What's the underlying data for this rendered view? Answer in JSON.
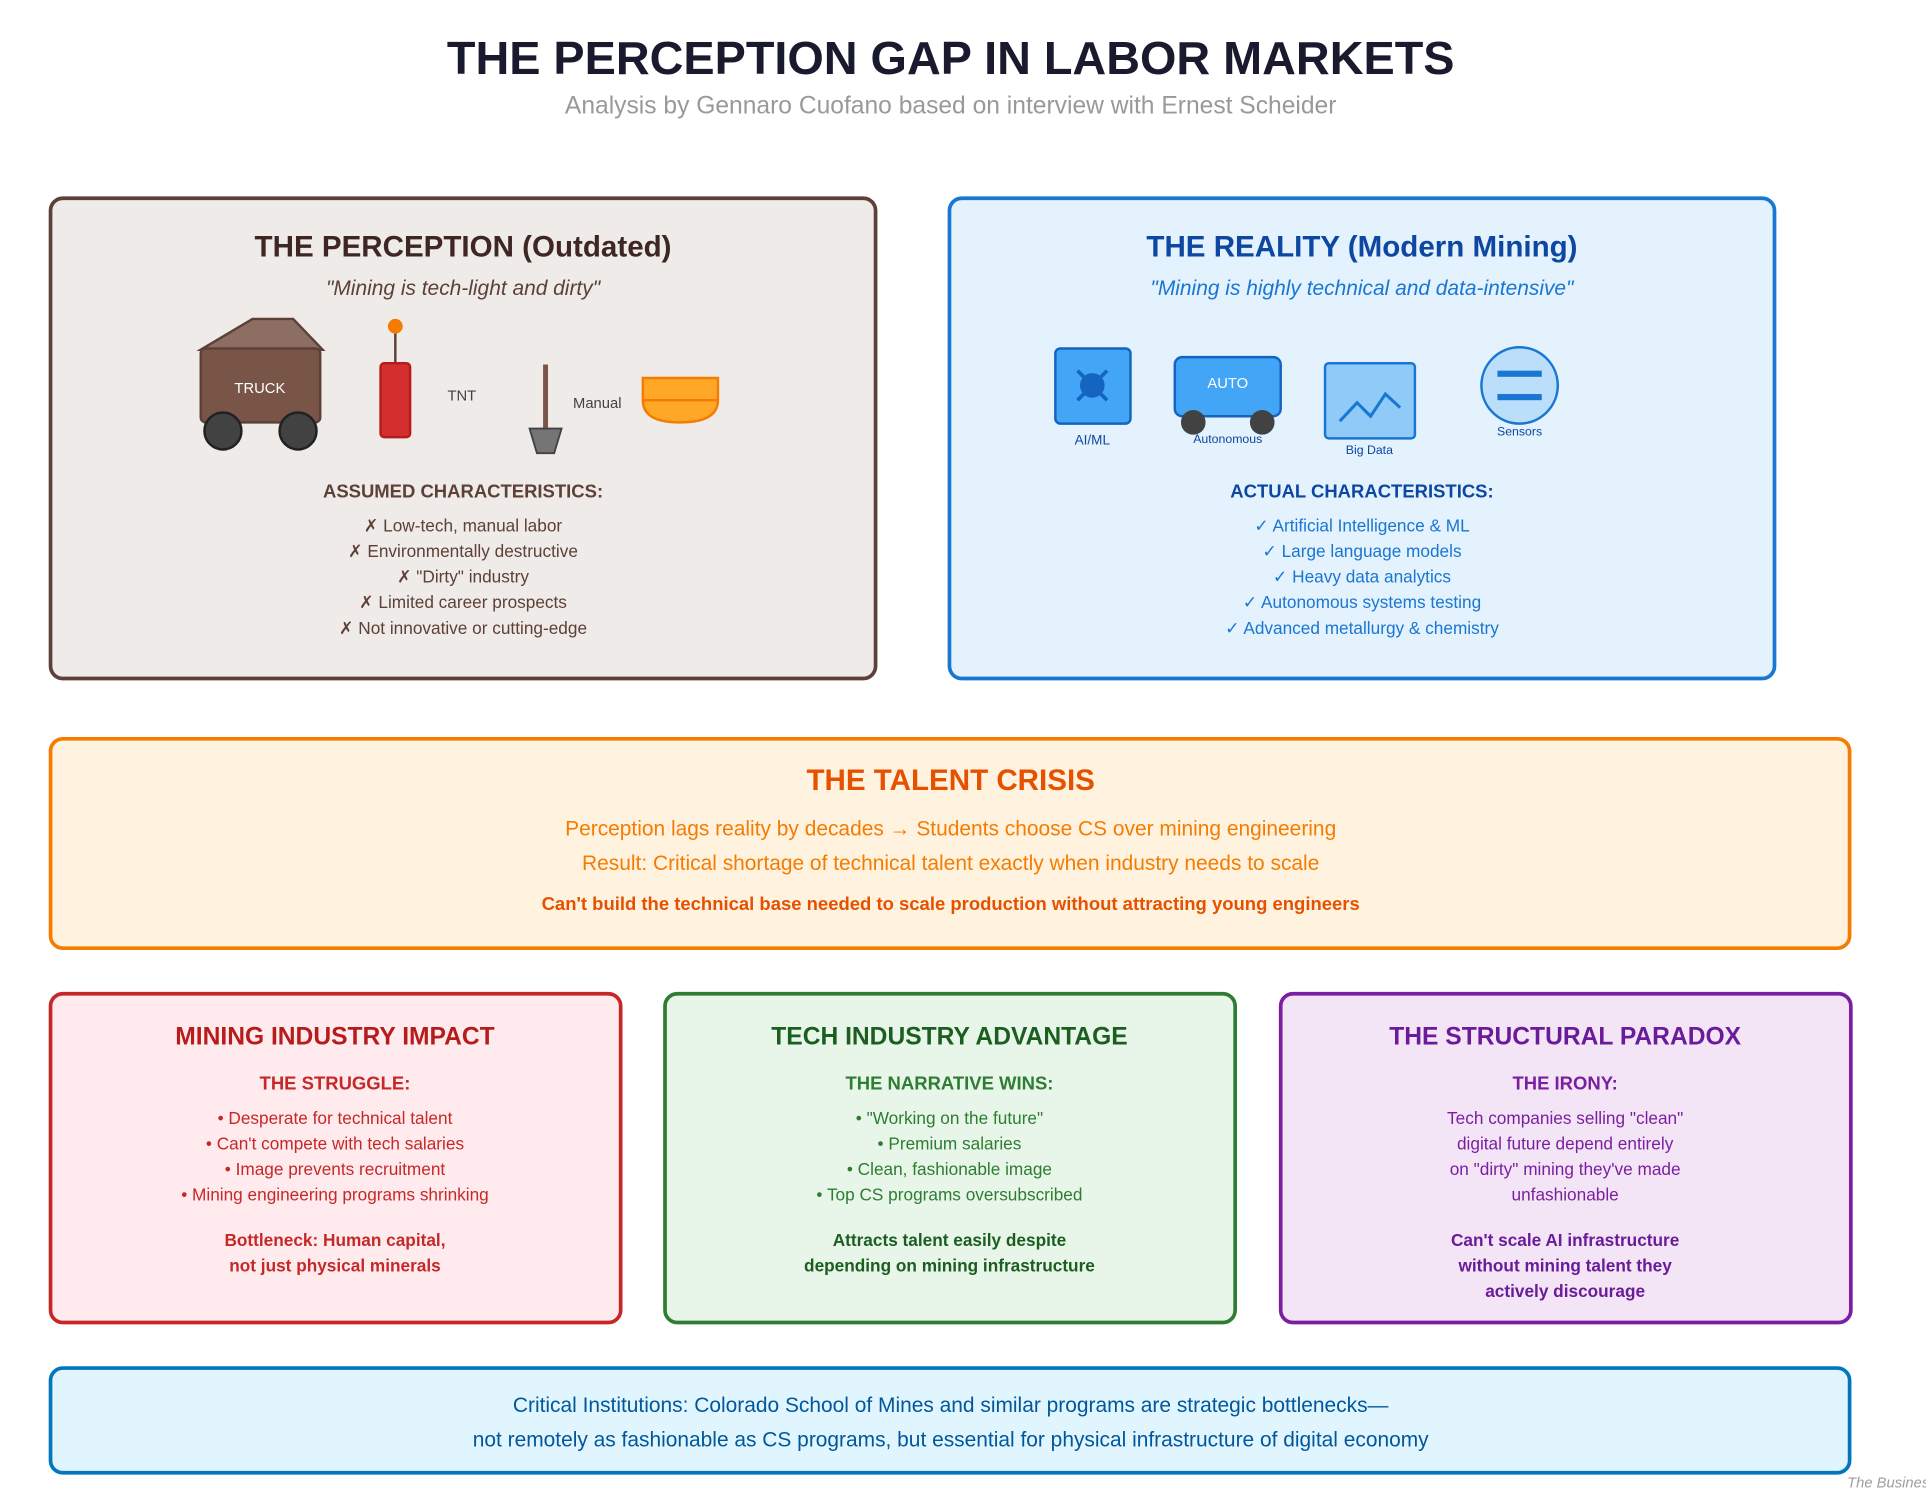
{
  "header": {
    "title": "THE PERCEPTION GAP IN LABOR MARKETS",
    "subtitle": "Analysis by Gennaro Cuofano based on interview with Ernest Scheider"
  },
  "perception": {
    "title": "THE PERCEPTION (Outdated)",
    "quote": "\"Mining is tech-light and dirty\"",
    "icons": [
      "TRUCK",
      "TNT",
      "Manual"
    ],
    "heading": "ASSUMED CHARACTERISTICS:",
    "items": [
      "✗ Low-tech, manual labor",
      "✗ Environmentally destructive",
      "✗ \"Dirty\" industry",
      "✗ Limited career prospects",
      "✗ Not innovative or cutting-edge"
    ]
  },
  "reality": {
    "title": "THE REALITY (Modern Mining)",
    "quote": "\"Mining is highly technical and data-intensive\"",
    "icons": [
      "AI/ML",
      "AUTO",
      "Autonomous",
      "Big Data",
      "Sensors"
    ],
    "heading": "ACTUAL CHARACTERISTICS:",
    "items": [
      "✓ Artificial Intelligence & ML",
      "✓ Large language models",
      "✓ Heavy data analytics",
      "✓ Autonomous systems testing",
      "✓ Advanced metallurgy & chemistry"
    ]
  },
  "crisis": {
    "title": "THE TALENT CRISIS",
    "lines": [
      "Perception lags reality by decades → Students choose CS over mining engineering",
      "Result: Critical shortage of technical talent exactly when industry needs to scale"
    ],
    "emphasis": "Can't build the technical base needed to scale production without attracting young engineers"
  },
  "panels": [
    {
      "title": "MINING INDUSTRY IMPACT",
      "heading": "THE STRUGGLE:",
      "items": [
        "• Desperate for technical talent",
        "• Can't compete with tech salaries",
        "• Image prevents recruitment",
        "• Mining engineering programs shrinking"
      ],
      "conclusion": [
        "Bottleneck: Human capital,",
        "not just physical minerals"
      ]
    },
    {
      "title": "TECH INDUSTRY ADVANTAGE",
      "heading": "THE NARRATIVE WINS:",
      "items": [
        "• \"Working on the future\"",
        "• Premium salaries",
        "• Clean, fashionable image",
        "• Top CS programs oversubscribed"
      ],
      "conclusion": [
        "Attracts talent easily despite",
        "depending on mining infrastructure"
      ]
    },
    {
      "title": "THE STRUCTURAL PARADOX",
      "heading": "THE IRONY:",
      "items": [
        "Tech companies selling \"clean\"",
        "digital future depend entirely",
        "on \"dirty\" mining they've made",
        "unfashionable"
      ],
      "conclusion": [
        "Can't scale AI infrastructure",
        "without mining talent they",
        "actively discourage"
      ]
    }
  ],
  "footer": {
    "lines": [
      "Critical Institutions: Colorado School of Mines and similar programs are strategic bottlenecks—",
      "not remotely as fashionable as CS programs, but essential for physical infrastructure of digital economy"
    ]
  },
  "credit": "The Business Engineer"
}
